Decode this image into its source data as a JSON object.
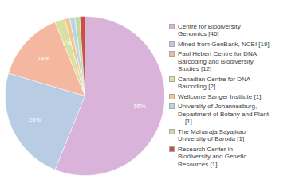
{
  "chart_data": {
    "type": "pie",
    "categories": [
      "Centre for Biodiversity\nGenomics [46]",
      "Mined from GenBank, NCBI [19]",
      "Paul Hebert Centre for DNA\nBarcoding and Biodiversity\nStudies [12]",
      "Canadian Centre for DNA\nBarcoding [2]",
      "Wellcome Sanger Institute [1]",
      "University of Johannesburg,\nDepartment of Botany and Plant\n... [1]",
      "The Maharaja Sayajirao\nUniversity of Baroda [1]",
      "Research Center in\nBiodiversity and Genetic\nResources [1]"
    ],
    "values": [
      55,
      23,
      14,
      2,
      1,
      1,
      1,
      1
    ],
    "value_labels": [
      "55%",
      "23%",
      "14%",
      "2%",
      null,
      null,
      null,
      null
    ],
    "colors": [
      "#d9b3d9",
      "#b8cce4",
      "#f4b8a0",
      "#d9e0a0",
      "#f4c68c",
      "#b8d4e8",
      "#c5d9a0",
      "#c85040"
    ],
    "data_labels": true,
    "legend": "right"
  }
}
